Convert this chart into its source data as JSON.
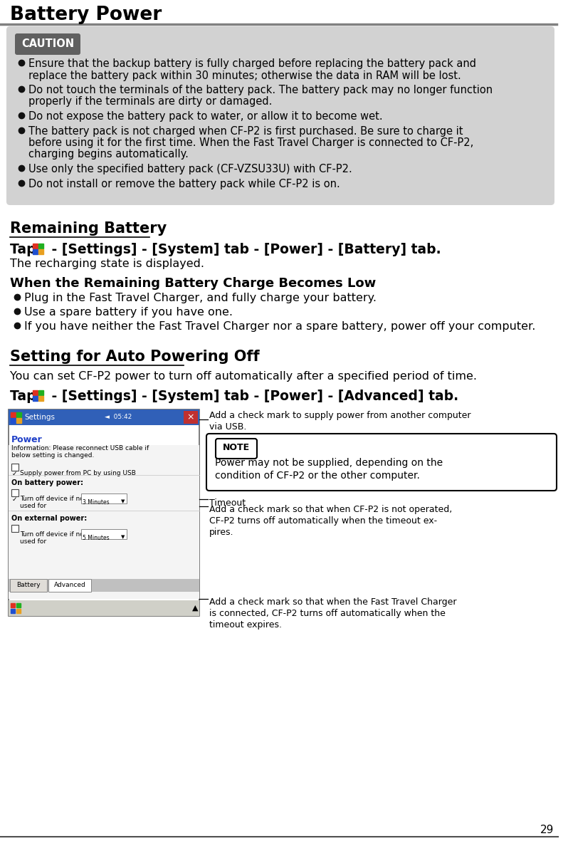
{
  "title": "Battery Power",
  "page_number": "29",
  "bg_color": "#ffffff",
  "title_color": "#000000",
  "title_fontsize": 19,
  "separator_color": "#808080",
  "caution_box_bg": "#d2d2d2",
  "caution_label_bg": "#606060",
  "caution_label_text": "CAUTION",
  "caution_label_color": "#ffffff",
  "caution_items_wrapped": [
    [
      "Ensure that the backup battery is fully charged before replacing the battery pack and",
      "replace the battery pack within 30 minutes; otherwise the data in RAM will be lost."
    ],
    [
      "Do not touch the terminals of the battery pack. The battery pack may no longer function",
      "properly if the terminals are dirty or damaged."
    ],
    [
      "Do not expose the battery pack to water, or allow it to become wet."
    ],
    [
      "The battery pack is not charged when CF-P2 is first purchased. Be sure to charge it",
      "before using it for the first time. When the Fast Travel Charger is connected to CF-P2,",
      "charging begins automatically."
    ],
    [
      "Use only the specified battery pack (CF-VZSU33U) with CF-P2."
    ],
    [
      "Do not install or remove the battery pack while CF-P2 is on."
    ]
  ],
  "section1_title": "Remaining Battery",
  "tap_line1": " - [Settings] - [System] tab - [Power] - [Battery] tab.",
  "tap_desc": "The recharging state is displayed.",
  "section2_title": "When the Remaining Battery Charge Becomes Low",
  "low_battery_items": [
    "Plug in the Fast Travel Charger, and fully charge your battery.",
    "Use a spare battery if you have one.",
    "If you have neither the Fast Travel Charger nor a spare battery, power off your computer."
  ],
  "section3_title": "Setting for Auto Powering Off",
  "auto_power_desc": "You can set CF-P2 power to turn off automatically after a specified period of time.",
  "tap_line2": " - [Settings] - [System] tab - [Power] - [Advanced] tab.",
  "note_label_text": "NOTE",
  "note_text_line1": "Power may not be supplied, depending on the",
  "note_text_line2": "condition of CF-P2 or the other computer.",
  "ann1": [
    "Add a check mark to supply power from another computer",
    "via USB."
  ],
  "ann_timeout": "Timeout",
  "ann3": [
    "Add a check mark so that when CF-P2 is not operated,",
    "CF-P2 turns off automatically when the timeout ex-",
    "pires."
  ],
  "ann4": [
    "Add a check mark so that when the Fast Travel Charger",
    "is connected, CF-P2 turns off automatically when the",
    "timeout expires."
  ],
  "body_fontsize": 11.5,
  "small_fontsize": 10.5,
  "section_title_fontsize": 15,
  "section2_title_fontsize": 13,
  "tap_fontsize": 13.5
}
